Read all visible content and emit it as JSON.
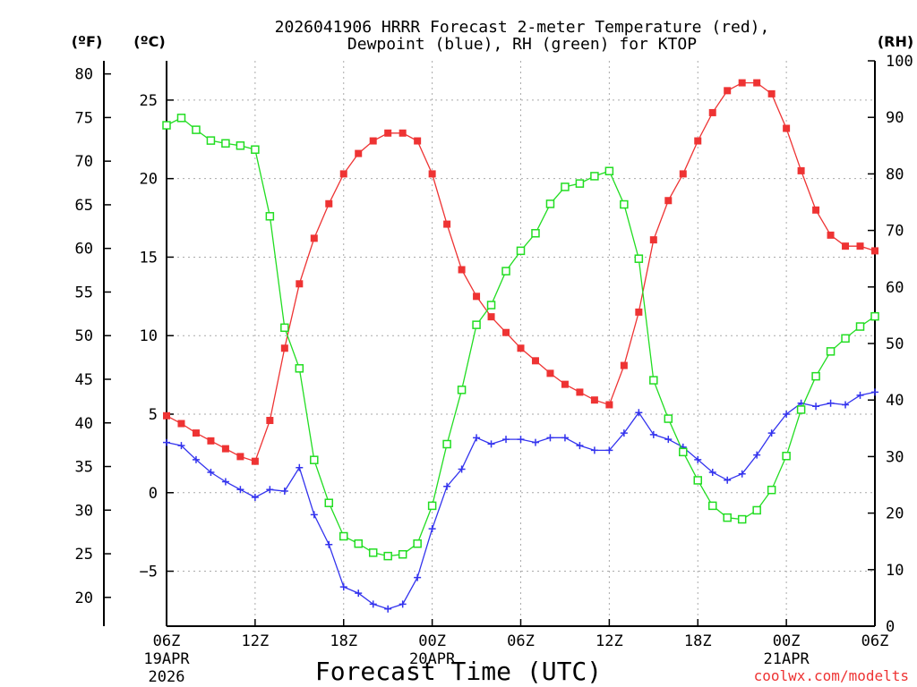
{
  "chart_data": {
    "type": "line",
    "title_line1": "2026041906 HRRR Forecast 2-meter Temperature (red),",
    "title_line2": "Dewpoint (blue), RH (green) for KTOP",
    "xlabel": "Forecast Time (UTC)",
    "watermark": "coolwx.com/modelts",
    "unit_f": "(ºF)",
    "unit_c": "(ºC)",
    "unit_rh": "(RH)",
    "x_hours": [
      0,
      1,
      2,
      3,
      4,
      5,
      6,
      7,
      8,
      9,
      10,
      11,
      12,
      13,
      14,
      15,
      16,
      17,
      18,
      19,
      20,
      21,
      22,
      23,
      24,
      25,
      26,
      27,
      28,
      29,
      30,
      31,
      32,
      33,
      34,
      35,
      36,
      37,
      38,
      39,
      40,
      41,
      42,
      43,
      44,
      45,
      46,
      47,
      48
    ],
    "c_ylim": [
      -8.5,
      27.5
    ],
    "f_ylim": [
      16.7,
      81.5
    ],
    "rh_ylim": [
      0,
      100
    ],
    "c_ticks": [
      -5,
      0,
      5,
      10,
      15,
      20,
      25
    ],
    "f_ticks": [
      20,
      25,
      30,
      35,
      40,
      45,
      50,
      55,
      60,
      65,
      70,
      75,
      80
    ],
    "rh_ticks": [
      0,
      10,
      20,
      30,
      40,
      50,
      60,
      70,
      80,
      90,
      100
    ],
    "x_ticks": [
      {
        "hour": 0,
        "l1": "06Z",
        "l2": "19APR",
        "l3": "2026"
      },
      {
        "hour": 6,
        "l1": "12Z"
      },
      {
        "hour": 12,
        "l1": "18Z"
      },
      {
        "hour": 18,
        "l1": "00Z",
        "l2": "20APR"
      },
      {
        "hour": 24,
        "l1": "06Z"
      },
      {
        "hour": 30,
        "l1": "12Z"
      },
      {
        "hour": 36,
        "l1": "18Z"
      },
      {
        "hour": 42,
        "l1": "00Z",
        "l2": "21APR"
      },
      {
        "hour": 48,
        "l1": "06Z"
      }
    ],
    "series": [
      {
        "name": "Temperature",
        "axis": "c",
        "color": "#ee3333",
        "marker": "filled-square",
        "values": [
          4.9,
          4.4,
          3.8,
          3.3,
          2.8,
          2.3,
          2.0,
          4.6,
          9.2,
          13.3,
          16.2,
          18.4,
          20.3,
          21.6,
          22.4,
          22.9,
          22.9,
          22.4,
          20.3,
          17.1,
          14.2,
          12.5,
          11.2,
          10.2,
          9.2,
          8.4,
          7.6,
          6.9,
          6.4,
          5.9,
          5.6,
          8.1,
          11.5,
          16.1,
          18.6,
          20.3,
          22.4,
          24.2,
          25.6,
          26.1,
          26.1,
          25.4,
          23.2,
          20.5,
          18.0,
          16.4,
          15.7,
          15.7,
          15.4
        ]
      },
      {
        "name": "Dewpoint",
        "axis": "c",
        "color": "#3333ee",
        "marker": "plus",
        "values": [
          3.2,
          3.0,
          2.1,
          1.3,
          0.7,
          0.2,
          -0.3,
          0.2,
          0.1,
          1.6,
          -1.4,
          -3.3,
          -6.0,
          -6.4,
          -7.1,
          -7.4,
          -7.1,
          -5.4,
          -2.3,
          0.4,
          1.5,
          3.5,
          3.1,
          3.4,
          3.4,
          3.2,
          3.5,
          3.5,
          3.0,
          2.7,
          2.7,
          3.8,
          5.1,
          3.7,
          3.4,
          2.9,
          2.1,
          1.3,
          0.8,
          1.2,
          2.4,
          3.8,
          5.0,
          5.7,
          5.5,
          5.7,
          5.6,
          6.2,
          6.4
        ]
      },
      {
        "name": "RH",
        "axis": "rh",
        "color": "#22dd22",
        "marker": "open-square",
        "values": [
          88.6,
          89.9,
          87.8,
          85.9,
          85.4,
          85.0,
          84.3,
          72.5,
          52.8,
          45.6,
          29.4,
          21.8,
          15.9,
          14.6,
          13.0,
          12.4,
          12.7,
          14.6,
          21.3,
          32.2,
          41.8,
          53.3,
          56.8,
          62.8,
          66.4,
          69.5,
          74.7,
          77.7,
          78.3,
          79.6,
          80.5,
          74.6,
          65.0,
          43.5,
          36.7,
          30.8,
          25.8,
          21.3,
          19.2,
          18.9,
          20.5,
          24.1,
          30.1,
          38.3,
          44.2,
          48.6,
          50.9,
          53.0,
          54.8
        ]
      }
    ]
  }
}
